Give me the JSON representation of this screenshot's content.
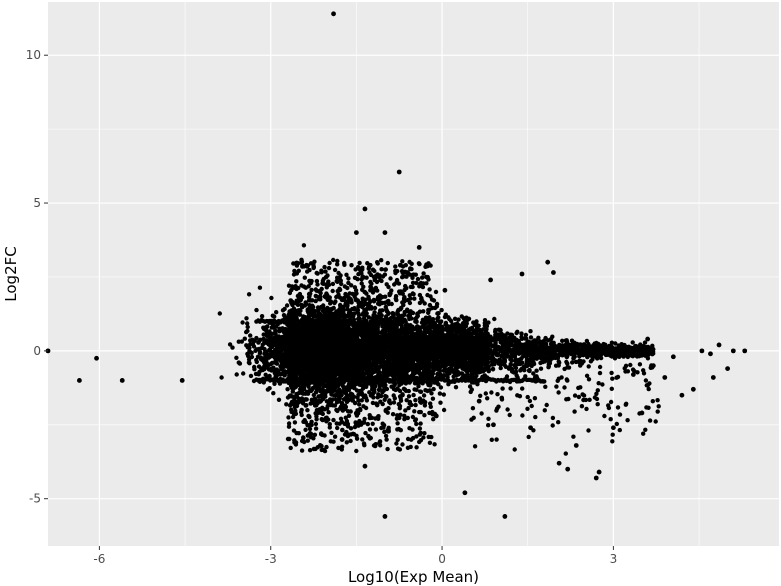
{
  "chart_data": {
    "type": "scatter",
    "title": "",
    "xlabel": "Log10(Exp Mean)",
    "ylabel": "Log2FC",
    "xlim": [
      -6.9,
      5.9
    ],
    "ylim": [
      -6.6,
      11.8
    ],
    "x_ticks": [
      -6,
      -3,
      0,
      3
    ],
    "y_ticks": [
      -5,
      0,
      5,
      10
    ],
    "x_tick_labels": [
      "-6",
      "-3",
      "0",
      "3"
    ],
    "y_tick_labels": [
      "-5",
      "0",
      "5",
      "10"
    ],
    "grid": true,
    "legend": "none",
    "colors": {
      "panel": "#ebebeb",
      "grid": "#ffffff",
      "point": "#000000",
      "tick": "#4d4d4d"
    },
    "points": [
      {
        "x": -6.9,
        "y": 0.0
      },
      {
        "x": -6.35,
        "y": -1.0
      },
      {
        "x": -6.05,
        "y": -0.25
      },
      {
        "x": -5.6,
        "y": -1.0
      },
      {
        "x": -4.55,
        "y": -1.0
      },
      {
        "x": -1.9,
        "y": 11.4
      },
      {
        "x": -0.75,
        "y": 6.05
      },
      {
        "x": -1.35,
        "y": 4.8
      },
      {
        "x": -1.5,
        "y": 4.0
      },
      {
        "x": -1.0,
        "y": 4.0
      },
      {
        "x": -0.4,
        "y": 3.5
      },
      {
        "x": 1.85,
        "y": 3.0
      },
      {
        "x": 1.95,
        "y": 2.65
      },
      {
        "x": 0.4,
        "y": -4.8
      },
      {
        "x": -1.0,
        "y": -5.6
      },
      {
        "x": 1.1,
        "y": -5.6
      },
      {
        "x": 2.7,
        "y": -4.3
      },
      {
        "x": 2.75,
        "y": -4.1
      },
      {
        "x": 2.2,
        "y": -4.0
      },
      {
        "x": 2.05,
        "y": -3.8
      },
      {
        "x": 5.3,
        "y": 0.0
      },
      {
        "x": 5.1,
        "y": 0.0
      },
      {
        "x": 4.85,
        "y": 0.2
      },
      {
        "x": 4.55,
        "y": 0.0
      },
      {
        "x": 4.7,
        "y": -0.1
      },
      {
        "x": 5.0,
        "y": -0.6
      },
      {
        "x": 4.75,
        "y": -0.9
      },
      {
        "x": 4.4,
        "y": -1.3
      },
      {
        "x": 4.2,
        "y": -1.5
      },
      {
        "x": 3.5,
        "y": -2.1
      },
      {
        "x": 3.0,
        "y": -2.6
      },
      {
        "x": 2.35,
        "y": -3.2
      },
      {
        "x": 1.55,
        "y": -2.6
      },
      {
        "x": 0.9,
        "y": -2.5
      },
      {
        "x": 1.4,
        "y": 2.6
      },
      {
        "x": 0.85,
        "y": 2.4
      },
      {
        "x": 0.05,
        "y": 2.05
      },
      {
        "x": -0.6,
        "y": 2.6
      },
      {
        "x": -2.3,
        "y": 2.3
      },
      {
        "x": -2.65,
        "y": 1.7
      },
      {
        "x": -1.75,
        "y": -3.0
      },
      {
        "x": -1.35,
        "y": -3.9
      },
      {
        "x": -0.1,
        "y": -2.2
      },
      {
        "x": 0.65,
        "y": -1.7
      },
      {
        "x": 3.7,
        "y": -0.5
      },
      {
        "x": 4.05,
        "y": -0.2
      },
      {
        "x": 3.9,
        "y": -0.9
      },
      {
        "x": 3.6,
        "y": 0.4
      },
      {
        "x": 3.35,
        "y": -0.8
      }
    ]
  }
}
